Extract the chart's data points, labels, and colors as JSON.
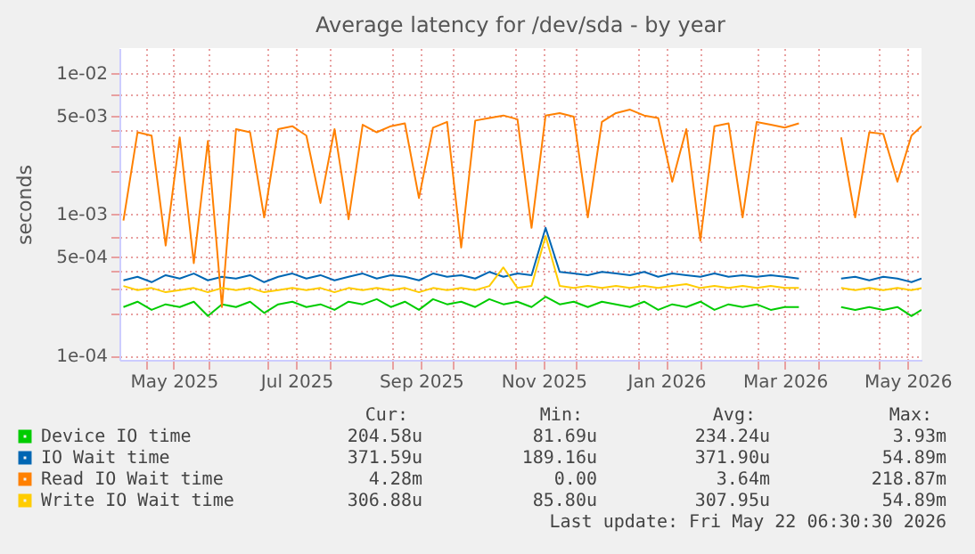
{
  "chart_data": {
    "type": "line",
    "title": "Average latency for /dev/sda - by year",
    "ylabel": "seconds",
    "log": "y",
    "grid": true,
    "legend": "bottom",
    "marker": "none",
    "line_style": "solid",
    "x": [
      "2025-04-20",
      "2025-04-27",
      "2025-05-04",
      "2025-05-11",
      "2025-05-18",
      "2025-05-25",
      "2025-06-01",
      "2025-06-08",
      "2025-06-15",
      "2025-06-22",
      "2025-06-29",
      "2025-07-06",
      "2025-07-13",
      "2025-07-20",
      "2025-07-27",
      "2025-08-03",
      "2025-08-10",
      "2025-08-17",
      "2025-08-24",
      "2025-08-31",
      "2025-09-07",
      "2025-09-14",
      "2025-09-21",
      "2025-09-28",
      "2025-10-05",
      "2025-10-12",
      "2025-10-19",
      "2025-10-26",
      "2025-11-02",
      "2025-11-09",
      "2025-11-16",
      "2025-11-23",
      "2025-11-30",
      "2025-12-07",
      "2025-12-14",
      "2025-12-21",
      "2025-12-28",
      "2026-01-04",
      "2026-01-11",
      "2026-01-18",
      "2026-01-25",
      "2026-02-01",
      "2026-02-08",
      "2026-02-15",
      "2026-02-22",
      "2026-03-01",
      "2026-03-08",
      "2026-03-15",
      "2026-03-22",
      "2026-03-29",
      "2026-04-05",
      "2026-04-12",
      "2026-04-19",
      "2026-04-26",
      "2026-05-03",
      "2026-05-10",
      "2026-05-17",
      "2026-05-22"
    ],
    "series": [
      {
        "name": "Device IO time",
        "color": "#00cc00",
        "values": [
          0.00022,
          0.00024,
          0.00021,
          0.00023,
          0.00022,
          0.00024,
          0.00019,
          0.00023,
          0.00022,
          0.00024,
          0.0002,
          0.00023,
          0.00024,
          0.00022,
          0.00023,
          0.00021,
          0.00024,
          0.00023,
          0.00025,
          0.00022,
          0.00024,
          0.00021,
          0.00025,
          0.00023,
          0.00024,
          0.00022,
          0.00025,
          0.00023,
          0.00024,
          0.00022,
          0.00026,
          0.00023,
          0.00024,
          0.00022,
          0.00024,
          0.00023,
          0.00022,
          0.00024,
          0.00021,
          0.00023,
          0.00022,
          0.00024,
          0.00021,
          0.00023,
          0.00022,
          0.00023,
          0.00021,
          0.00022,
          0.00022,
          null,
          null,
          0.00022,
          0.00021,
          0.00022,
          0.00021,
          0.00022,
          0.00019,
          0.00021
        ]
      },
      {
        "name": "IO Wait time",
        "color": "#0066b3",
        "values": [
          0.00034,
          0.00036,
          0.00033,
          0.00037,
          0.00035,
          0.00038,
          0.00034,
          0.00036,
          0.00035,
          0.00037,
          0.00033,
          0.00036,
          0.00038,
          0.00035,
          0.00037,
          0.00034,
          0.00036,
          0.00038,
          0.00035,
          0.00037,
          0.00036,
          0.00034,
          0.00038,
          0.00036,
          0.00037,
          0.00035,
          0.00039,
          0.00036,
          0.00038,
          0.00037,
          0.0008,
          0.00039,
          0.00038,
          0.00037,
          0.00039,
          0.00038,
          0.00037,
          0.00039,
          0.00036,
          0.00038,
          0.00037,
          0.00036,
          0.00038,
          0.00036,
          0.00037,
          0.00036,
          0.00037,
          0.00036,
          0.00035,
          null,
          null,
          0.00035,
          0.00036,
          0.00034,
          0.00036,
          0.00035,
          0.00033,
          0.00035
        ]
      },
      {
        "name": "Read IO Wait time",
        "color": "#ff8000",
        "values": [
          0.0009,
          0.0038,
          0.0036,
          0.0006,
          0.0035,
          0.00045,
          0.0033,
          0.00022,
          0.004,
          0.0038,
          0.00095,
          0.004,
          0.0042,
          0.0036,
          0.0012,
          0.004,
          0.00092,
          0.0043,
          0.0038,
          0.0042,
          0.0044,
          0.0013,
          0.0041,
          0.0045,
          0.00058,
          0.0046,
          0.0048,
          0.005,
          0.0047,
          0.0008,
          0.005,
          0.0052,
          0.0049,
          0.00095,
          0.0045,
          0.0052,
          0.0055,
          0.005,
          0.0048,
          0.0017,
          0.004,
          0.00065,
          0.0042,
          0.0044,
          0.00095,
          0.0045,
          0.0043,
          0.0041,
          0.0044,
          null,
          null,
          0.0035,
          0.00095,
          0.0038,
          0.0037,
          0.0017,
          0.0036,
          0.0042
        ]
      },
      {
        "name": "Write IO Wait time",
        "color": "#ffcc00",
        "values": [
          0.00031,
          0.00029,
          0.0003,
          0.00028,
          0.00029,
          0.0003,
          0.00028,
          0.0003,
          0.00029,
          0.0003,
          0.00028,
          0.00029,
          0.0003,
          0.00029,
          0.0003,
          0.00028,
          0.0003,
          0.00029,
          0.0003,
          0.00029,
          0.0003,
          0.00028,
          0.0003,
          0.00029,
          0.0003,
          0.00029,
          0.00031,
          0.00042,
          0.0003,
          0.00031,
          0.0007,
          0.00031,
          0.0003,
          0.00031,
          0.0003,
          0.00031,
          0.0003,
          0.00031,
          0.0003,
          0.00031,
          0.00032,
          0.0003,
          0.00031,
          0.0003,
          0.00031,
          0.0003,
          0.00031,
          0.0003,
          0.0003,
          null,
          null,
          0.0003,
          0.00029,
          0.0003,
          0.00029,
          0.0003,
          0.00029,
          0.0003
        ]
      }
    ],
    "xlim": [
      "2025-04-18",
      "2026-05-22"
    ],
    "xticks": [
      {
        "value": "2025-05-01",
        "label": null
      },
      {
        "value": "2025-05-15",
        "label": "May 2025"
      },
      {
        "value": "2025-06-01",
        "label": null
      },
      {
        "value": "2025-07-01",
        "label": null
      },
      {
        "value": "2025-07-15",
        "label": "Jul 2025"
      },
      {
        "value": "2025-08-01",
        "label": null
      },
      {
        "value": "2025-09-01",
        "label": null
      },
      {
        "value": "2025-09-15",
        "label": "Sep 2025"
      },
      {
        "value": "2025-10-01",
        "label": null
      },
      {
        "value": "2025-11-01",
        "label": null
      },
      {
        "value": "2025-11-15",
        "label": "Nov 2025"
      },
      {
        "value": "2025-12-01",
        "label": null
      },
      {
        "value": "2026-01-01",
        "label": null
      },
      {
        "value": "2026-01-15",
        "label": "Jan 2026"
      },
      {
        "value": "2026-02-01",
        "label": null
      },
      {
        "value": "2026-03-01",
        "label": null
      },
      {
        "value": "2026-03-15",
        "label": "Mar 2026"
      },
      {
        "value": "2026-04-01",
        "label": null
      },
      {
        "value": "2026-05-01",
        "label": null
      },
      {
        "value": "2026-05-15",
        "label": "May 2026"
      }
    ],
    "ylim": [
      9.3e-05,
      0.015
    ],
    "yticks": [
      {
        "value": 0.0001,
        "label": "1e-04"
      },
      {
        "value": 0.0002,
        "label": null
      },
      {
        "value": 0.0003,
        "label": null
      },
      {
        "value": 0.0004,
        "label": null
      },
      {
        "value": 0.0005,
        "label": "5e-04"
      },
      {
        "value": 0.0007,
        "label": null
      },
      {
        "value": 0.001,
        "label": "1e-03"
      },
      {
        "value": 0.002,
        "label": null
      },
      {
        "value": 0.003,
        "label": null
      },
      {
        "value": 0.004,
        "label": null
      },
      {
        "value": 0.005,
        "label": "5e-03"
      },
      {
        "value": 0.007,
        "label": null
      },
      {
        "value": 0.01,
        "label": "1e-02"
      }
    ],
    "annotations": [
      "Cur:",
      "Min:",
      "Avg:",
      "Max:",
      "204.58u",
      "81.69u",
      "234.24u",
      "3.93m",
      "371.59u",
      "189.16u",
      "371.90u",
      "54.89m",
      "4.28m",
      "0.00",
      "3.64m",
      "218.87m",
      "306.88u",
      "85.80u",
      "307.95u",
      "54.89m",
      "Last update: Fri May 22 06:30:30 2026"
    ]
  }
}
